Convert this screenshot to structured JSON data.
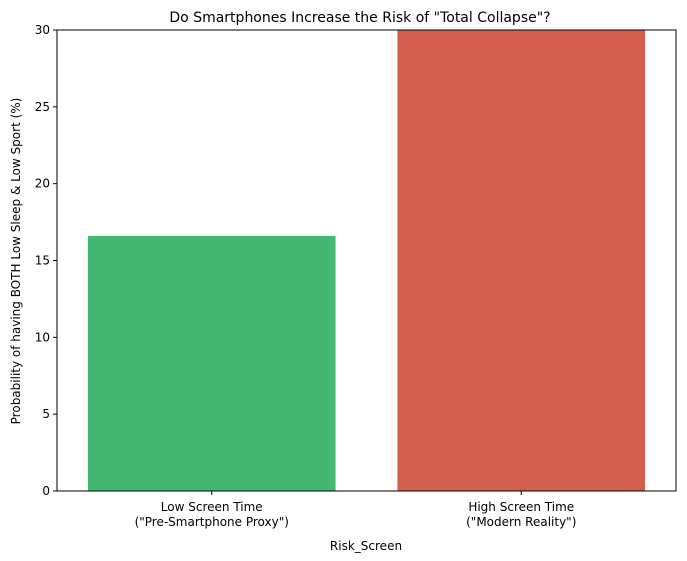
{
  "chart_data": {
    "type": "bar",
    "title": "Do Smartphones Increase the Risk of \"Total Collapse\"?",
    "xlabel": "Risk_Screen",
    "ylabel": "Probability of having BOTH Low Sleep & Low Sport (%)",
    "categories": [
      "Low Screen Time\n(\"Pre-Smartphone Proxy\")",
      "High Screen Time\n(\"Modern Reality\")"
    ],
    "values": [
      16.6,
      31.0
    ],
    "ylim": [
      0,
      30
    ],
    "yticks": [
      0,
      5,
      10,
      15,
      20,
      25,
      30
    ],
    "colors": [
      "#45b874",
      "#d35f4f"
    ],
    "grid": false,
    "legend": "none"
  }
}
